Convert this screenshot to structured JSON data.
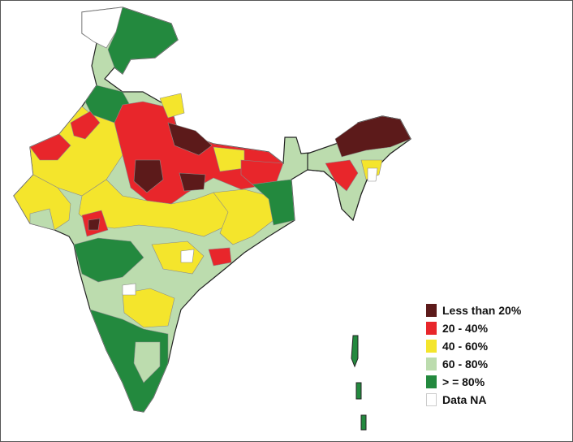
{
  "legend": {
    "items": [
      {
        "label": "Less than 20%",
        "color": "#5c1a1a"
      },
      {
        "label": "20 - 40%",
        "color": "#e8262b"
      },
      {
        "label": "40 - 60%",
        "color": "#f4e52c"
      },
      {
        "label": "60 - 80%",
        "color": "#bcdcae"
      },
      {
        "label": "> = 80%",
        "color": "#23893e"
      },
      {
        "label": "Data NA",
        "color": "#ffffff"
      }
    ]
  },
  "colors": {
    "border_lines": "#8a8a8a",
    "outline": "#222222",
    "frame": "#555555"
  }
}
